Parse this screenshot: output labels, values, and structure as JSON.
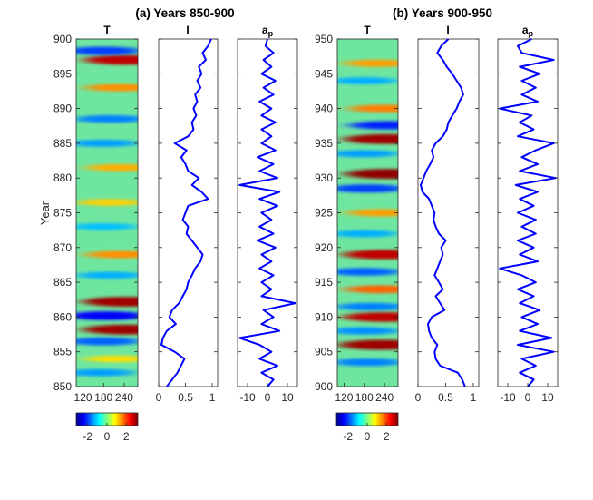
{
  "chart_data": [
    {
      "type": "heatmap",
      "title": "(a) Years 850-900",
      "panel_title": "T",
      "ylabel": "Year",
      "ylim": [
        850,
        900
      ],
      "yticks": [
        "850",
        "855",
        "860",
        "865",
        "870",
        "875",
        "880",
        "885",
        "890",
        "895",
        "900"
      ],
      "xlim": [
        100,
        280
      ],
      "xticks": [
        "120",
        "180",
        "240"
      ],
      "colorbar": {
        "range": [
          -3.2,
          3.2
        ],
        "ticks": [
          "-2",
          "0",
          "2"
        ],
        "colormap": "jet"
      },
      "bands": [
        {
          "year": 897.0,
          "x": 245,
          "value": 2.8
        },
        {
          "year": 898.3,
          "x": 180,
          "value": -2.0
        },
        {
          "year": 893.0,
          "x": 230,
          "value": 1.5
        },
        {
          "year": 888.5,
          "x": 200,
          "value": -1.6
        },
        {
          "year": 885.0,
          "x": 180,
          "value": -1.4
        },
        {
          "year": 881.5,
          "x": 230,
          "value": 1.3
        },
        {
          "year": 876.5,
          "x": 200,
          "value": 1.1
        },
        {
          "year": 873.0,
          "x": 180,
          "value": -1.2
        },
        {
          "year": 869.0,
          "x": 230,
          "value": 1.5
        },
        {
          "year": 866.0,
          "x": 200,
          "value": -1.3
        },
        {
          "year": 862.2,
          "x": 245,
          "value": 3.0
        },
        {
          "year": 860.2,
          "x": 190,
          "value": -2.4
        },
        {
          "year": 858.2,
          "x": 245,
          "value": 3.0
        },
        {
          "year": 856.5,
          "x": 180,
          "value": -1.8
        },
        {
          "year": 854.0,
          "x": 220,
          "value": 1.0
        },
        {
          "year": 852.0,
          "x": 170,
          "value": -1.4
        }
      ]
    },
    {
      "type": "line",
      "panel_title": "I",
      "ylim": [
        850,
        900
      ],
      "xlim": [
        0,
        1.1
      ],
      "xticks": [
        "0",
        "0.5",
        "1"
      ],
      "series": [
        {
          "name": "I",
          "color": "#0000ff",
          "year": [
            850,
            852,
            854,
            855,
            856,
            857,
            858,
            859,
            860,
            861,
            862,
            863,
            864,
            865,
            866,
            867,
            868,
            869,
            870,
            871,
            872,
            873,
            874,
            875,
            876,
            877,
            878,
            879,
            880,
            881,
            882,
            883,
            884,
            885,
            886,
            887,
            888,
            889,
            890,
            891,
            892,
            893,
            894,
            895,
            896,
            897,
            898,
            899,
            900
          ],
          "values": [
            0.15,
            0.35,
            0.48,
            0.3,
            0.05,
            0.08,
            0.15,
            0.32,
            0.2,
            0.25,
            0.38,
            0.45,
            0.52,
            0.55,
            0.62,
            0.68,
            0.78,
            0.82,
            0.72,
            0.62,
            0.52,
            0.55,
            0.45,
            0.5,
            0.55,
            0.92,
            0.8,
            0.62,
            0.75,
            0.55,
            0.5,
            0.42,
            0.52,
            0.3,
            0.55,
            0.65,
            0.62,
            0.7,
            0.65,
            0.72,
            0.68,
            0.78,
            0.72,
            0.8,
            0.75,
            0.88,
            0.82,
            0.92,
            0.98
          ]
        }
      ]
    },
    {
      "type": "line",
      "panel_title": "a_p",
      "ylim": [
        850,
        900
      ],
      "xlim": [
        -15,
        15
      ],
      "xticks": [
        "-10",
        "0",
        "10"
      ],
      "series": [
        {
          "name": "a_p",
          "color": "#0000ff",
          "year": [
            850,
            851,
            852,
            853,
            854,
            855,
            856,
            857,
            858,
            859,
            860,
            861,
            862,
            863,
            864,
            865,
            866,
            867,
            868,
            869,
            870,
            871,
            872,
            873,
            874,
            875,
            876,
            877,
            878,
            879,
            880,
            881,
            882,
            883,
            884,
            885,
            886,
            887,
            888,
            889,
            890,
            891,
            892,
            893,
            894,
            895,
            896,
            897,
            898,
            899,
            900
          ],
          "values": [
            0,
            3,
            -3,
            5,
            -4,
            2,
            -4,
            -14,
            6,
            -3,
            3,
            -2,
            14,
            -3,
            2,
            -3,
            3,
            -4,
            2,
            -3,
            4,
            -5,
            3,
            -4,
            2,
            -3,
            5,
            -4,
            6,
            -14,
            5,
            -4,
            3,
            -5,
            4,
            -3,
            2,
            -3,
            4,
            -3,
            2,
            -4,
            3,
            -2,
            4,
            -3,
            2,
            -2,
            3,
            -1,
            0
          ]
        }
      ]
    },
    {
      "type": "heatmap",
      "title": "(b) Years 900-950",
      "panel_title": "T",
      "ylim": [
        900,
        950
      ],
      "yticks": [
        "900",
        "905",
        "910",
        "915",
        "920",
        "925",
        "930",
        "935",
        "940",
        "945",
        "950"
      ],
      "xlim": [
        100,
        280
      ],
      "xticks": [
        "120",
        "180",
        "240"
      ],
      "colorbar": {
        "range": [
          -3.2,
          3.2
        ],
        "ticks": [
          "-2",
          "0",
          "2"
        ],
        "colormap": "jet"
      },
      "bands": [
        {
          "year": 946.5,
          "x": 220,
          "value": 1.4
        },
        {
          "year": 944.0,
          "x": 180,
          "value": -1.3
        },
        {
          "year": 940.0,
          "x": 240,
          "value": 1.6
        },
        {
          "year": 937.6,
          "x": 250,
          "value": -2.2
        },
        {
          "year": 935.6,
          "x": 245,
          "value": 3.0
        },
        {
          "year": 933.5,
          "x": 180,
          "value": -1.4
        },
        {
          "year": 930.6,
          "x": 250,
          "value": 3.1
        },
        {
          "year": 928.5,
          "x": 190,
          "value": -2.0
        },
        {
          "year": 925.0,
          "x": 230,
          "value": 1.4
        },
        {
          "year": 922.0,
          "x": 180,
          "value": -1.3
        },
        {
          "year": 919.0,
          "x": 240,
          "value": 2.8
        },
        {
          "year": 916.5,
          "x": 180,
          "value": -1.8
        },
        {
          "year": 914.0,
          "x": 230,
          "value": 1.8
        },
        {
          "year": 911.5,
          "x": 200,
          "value": -1.6
        },
        {
          "year": 910.0,
          "x": 240,
          "value": 2.8
        },
        {
          "year": 908.0,
          "x": 180,
          "value": -1.5
        },
        {
          "year": 906.0,
          "x": 230,
          "value": 3.0
        },
        {
          "year": 903.5,
          "x": 190,
          "value": -1.6
        }
      ]
    },
    {
      "type": "line",
      "panel_title": "I",
      "ylim": [
        900,
        950
      ],
      "xlim": [
        0,
        1.1
      ],
      "xticks": [
        "0",
        "0.5",
        "1"
      ],
      "series": [
        {
          "name": "I",
          "color": "#0000ff",
          "year": [
            900,
            901,
            902,
            903,
            904,
            905,
            906,
            907,
            908,
            909,
            910,
            911,
            912,
            913,
            914,
            915,
            916,
            917,
            918,
            919,
            920,
            921,
            922,
            923,
            924,
            925,
            926,
            927,
            928,
            929,
            930,
            931,
            932,
            933,
            934,
            935,
            936,
            937,
            938,
            939,
            940,
            941,
            942,
            943,
            944,
            945,
            946,
            947,
            948,
            949,
            950
          ],
          "values": [
            0.85,
            0.8,
            0.72,
            0.4,
            0.32,
            0.3,
            0.35,
            0.25,
            0.2,
            0.18,
            0.25,
            0.48,
            0.4,
            0.32,
            0.45,
            0.38,
            0.3,
            0.35,
            0.4,
            0.45,
            0.42,
            0.5,
            0.38,
            0.32,
            0.28,
            0.3,
            0.25,
            0.2,
            0.08,
            0.05,
            0.1,
            0.15,
            0.22,
            0.28,
            0.25,
            0.32,
            0.45,
            0.52,
            0.55,
            0.62,
            0.7,
            0.75,
            0.82,
            0.78,
            0.7,
            0.62,
            0.52,
            0.45,
            0.35,
            0.42,
            0.55
          ]
        }
      ]
    },
    {
      "type": "line",
      "panel_title": "a_p",
      "ylim": [
        900,
        950
      ],
      "xlim": [
        -15,
        15
      ],
      "xticks": [
        "-10",
        "0",
        "10"
      ],
      "series": [
        {
          "name": "a_p",
          "color": "#0000ff",
          "year": [
            900,
            901,
            902,
            903,
            904,
            905,
            906,
            907,
            908,
            909,
            910,
            911,
            912,
            913,
            914,
            915,
            916,
            917,
            918,
            919,
            920,
            921,
            922,
            923,
            924,
            925,
            926,
            927,
            928,
            929,
            930,
            931,
            932,
            933,
            934,
            935,
            936,
            937,
            938,
            939,
            940,
            941,
            942,
            943,
            944,
            945,
            946,
            947,
            948,
            949,
            950
          ],
          "values": [
            0,
            3,
            -4,
            4,
            -3,
            13,
            -5,
            12,
            -4,
            5,
            -3,
            6,
            -4,
            3,
            -5,
            4,
            -3,
            -14,
            5,
            -4,
            3,
            -5,
            4,
            -3,
            4,
            -5,
            3,
            -4,
            5,
            -6,
            14,
            -4,
            5,
            -3,
            4,
            13,
            -5,
            3,
            -4,
            2,
            -14,
            5,
            -3,
            4,
            -3,
            6,
            -4,
            13,
            -3,
            -5,
            2
          ]
        }
      ]
    }
  ]
}
